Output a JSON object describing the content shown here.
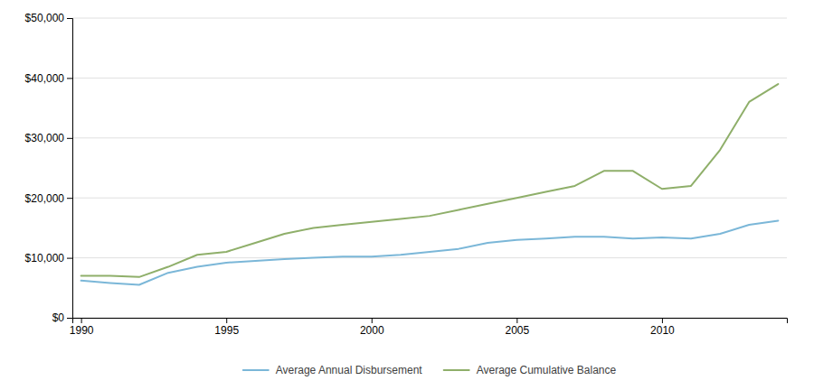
{
  "chart_data": {
    "type": "line",
    "x": [
      1990,
      1991,
      1992,
      1993,
      1994,
      1995,
      1996,
      1997,
      1998,
      1999,
      2000,
      2001,
      2002,
      2003,
      2004,
      2005,
      2006,
      2007,
      2008,
      2009,
      2010,
      2011,
      2012,
      2013,
      2014
    ],
    "series": [
      {
        "name": "Average Annual Disbursement",
        "color": "#7BB7D8",
        "values": [
          6200,
          5800,
          5500,
          7500,
          8500,
          9200,
          9500,
          9800,
          10000,
          10200,
          10200,
          10500,
          11000,
          11500,
          12500,
          13000,
          13200,
          13500,
          13500,
          13200,
          13400,
          13200,
          14000,
          15500,
          16200
        ]
      },
      {
        "name": "Average Cumulative Balance",
        "color": "#8FAF6A",
        "values": [
          7000,
          7000,
          6800,
          8500,
          10500,
          11000,
          12500,
          14000,
          15000,
          15500,
          16000,
          16500,
          17000,
          18000,
          19000,
          20000,
          21000,
          22000,
          24500,
          24500,
          21500,
          22000,
          28000,
          36000,
          39000
        ]
      }
    ],
    "xlim": [
      1989.7,
      2014.3
    ],
    "xticks": [
      1990,
      1995,
      2000,
      2005,
      2010
    ],
    "ylim": [
      0,
      50000
    ],
    "yticks": [
      {
        "value": 0,
        "label": "$0"
      },
      {
        "value": 10000,
        "label": "$10,000"
      },
      {
        "value": 20000,
        "label": "$20,000"
      },
      {
        "value": 30000,
        "label": "$30,000"
      },
      {
        "value": 40000,
        "label": "$40,000"
      },
      {
        "value": 50000,
        "label": "$50,000"
      }
    ],
    "grid": true,
    "legend": "bottom"
  }
}
